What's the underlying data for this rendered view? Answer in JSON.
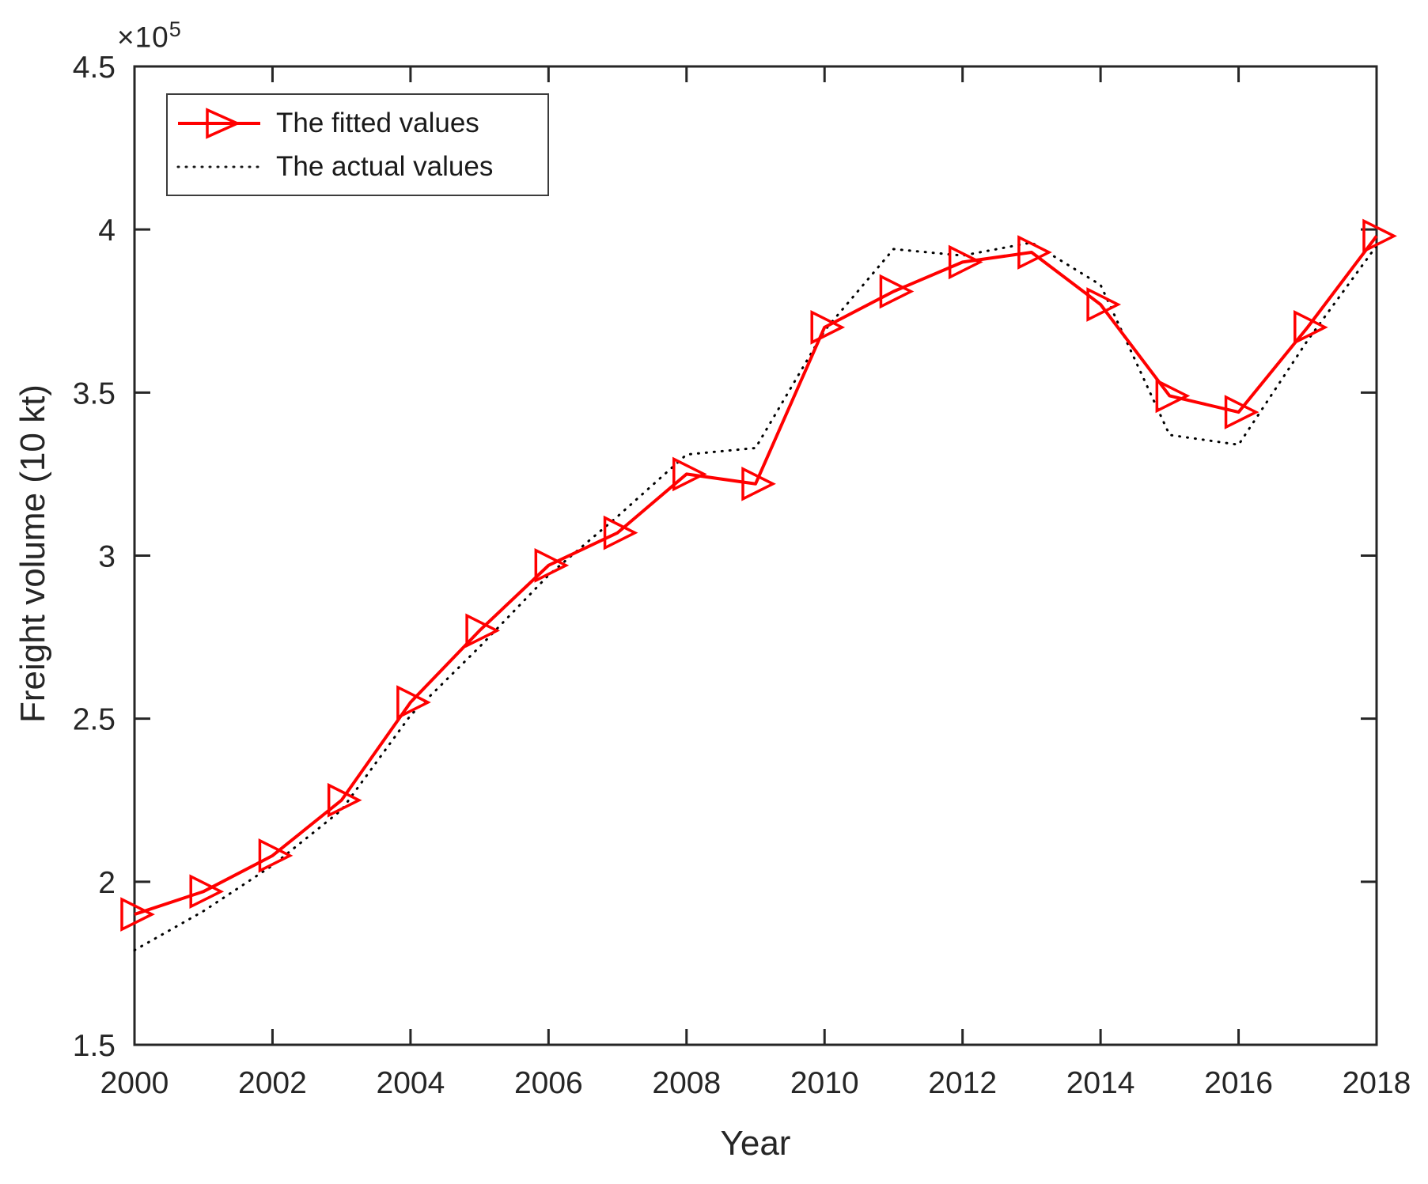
{
  "figure": {
    "exponent_base": "×10",
    "exponent_power": "5",
    "xlabel": "Year",
    "ylabel": "Freight volume (10 kt)",
    "legend_fitted": "The fitted values",
    "legend_actual": "The actual values",
    "axis_color": "#262626",
    "background_color": "#ffffff"
  },
  "chart_data": {
    "type": "line",
    "title": "",
    "xlabel": "Year",
    "ylabel": "Freight volume (10 kt)",
    "x": [
      2000,
      2001,
      2002,
      2003,
      2004,
      2005,
      2006,
      2007,
      2008,
      2009,
      2010,
      2011,
      2012,
      2013,
      2014,
      2015,
      2016,
      2017,
      2018
    ],
    "series": [
      {
        "name": "The fitted values",
        "color": "#ff0000",
        "line_style": "solid",
        "marker": "right-triangle-open",
        "values": [
          190000,
          197000,
          208000,
          225000,
          255000,
          277000,
          297000,
          307000,
          325000,
          322000,
          370000,
          381000,
          390000,
          393000,
          377000,
          349000,
          344000,
          370000,
          398000
        ]
      },
      {
        "name": "The actual values",
        "color": "#000000",
        "line_style": "dotted",
        "marker": "none",
        "values": [
          179000,
          191000,
          205000,
          222000,
          251000,
          272000,
          294000,
          312000,
          331000,
          333000,
          369000,
          394000,
          392000,
          396000,
          383000,
          337000,
          334000,
          366000,
          395000
        ]
      }
    ],
    "xlim": [
      2000,
      2018
    ],
    "ylim": [
      150000,
      450000
    ],
    "y_scale_exponent": 5,
    "x_tick_labels": [
      "2000",
      "2002",
      "2004",
      "2006",
      "2008",
      "2010",
      "2012",
      "2014",
      "2016",
      "2018"
    ],
    "y_tick_labels": [
      "1.5",
      "2",
      "2.5",
      "3",
      "3.5",
      "4",
      "4.5"
    ],
    "grid": false,
    "legend_position": "top-left",
    "box": true
  }
}
